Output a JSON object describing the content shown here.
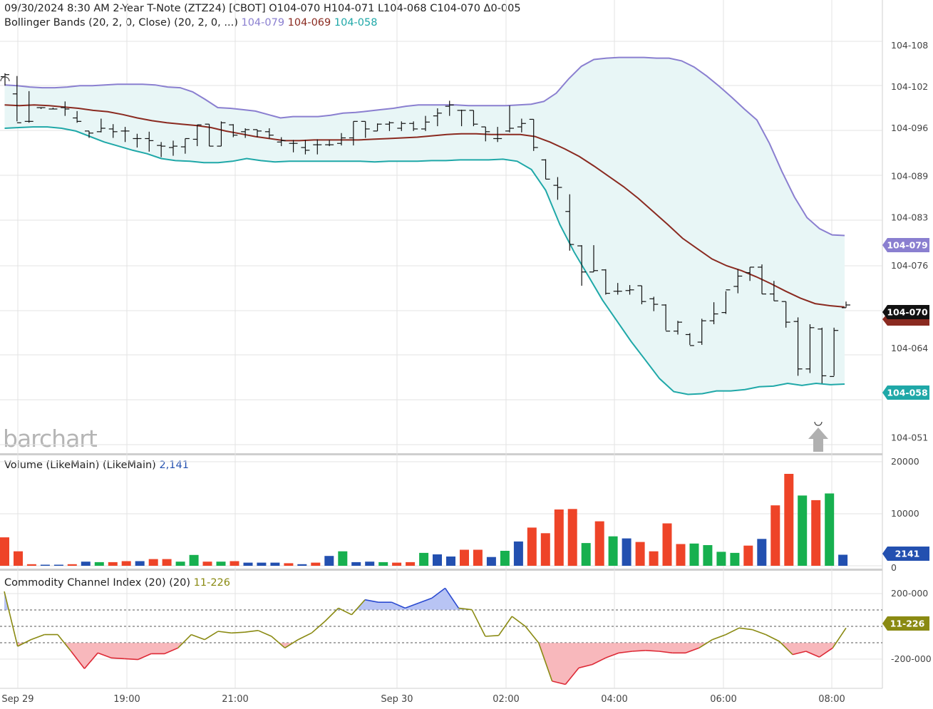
{
  "header": {
    "line1": "09/30/2024 8:30 AM  2-Year T-Note (ZTZ24) [CBOT]  O104-070  H104-071  L104-068  C104-070  Δ0-005",
    "bb_label": "Bollinger Bands (20, 2, 0, Close)  (20, 2, 0, ...)",
    "bb_upper": "104-079",
    "bb_mid": "104-069",
    "bb_lower": "104-058"
  },
  "logo": "barchart",
  "colors": {
    "upper": "#8a7fd0",
    "mid": "#8a2a20",
    "lower": "#1fa8a8",
    "band_fill": "#e8f6f6",
    "vol_up": "#17b04f",
    "vol_down": "#ee4428",
    "vol_neutral": "#2350b0",
    "cci_line": "#8a8a12",
    "cci_pos_fill": "#b8c4f4",
    "cci_neg_fill": "#f8b8bc"
  },
  "badges": {
    "upper": "104-079",
    "last": "104-070",
    "lower": "104-058",
    "volume": "2141",
    "cci": "11-226"
  },
  "volume_panel": {
    "label": "Volume (LikeMain)  (LikeMain)",
    "value": "2,141"
  },
  "cci_panel": {
    "label": "Commodity Channel Index (20)  (20)",
    "value": "11-226"
  },
  "chart_data": [
    {
      "type": "ohlc",
      "title": "2-Year T-Note (ZTZ24) [CBOT]",
      "x_ticks": [
        "Sep 29",
        "19:00",
        "21:00",
        "Sep 30",
        "02:00",
        "04:00",
        "06:00",
        "08:00"
      ],
      "y_ticks": [
        "104-108",
        "104-102",
        "104-096",
        "104-089",
        "104-083",
        "104-076",
        "104-064",
        "104-051"
      ],
      "bars": [
        {
          "o": 103.5,
          "h": 104.0,
          "l": 102.2,
          "c": 103.8
        },
        {
          "o": 101.0,
          "h": 103.6,
          "l": 97.0,
          "c": 96.8
        },
        {
          "o": 97.0,
          "h": 101.4,
          "l": 96.8,
          "c": 97.0
        },
        {
          "o": 99.0,
          "h": 99.0,
          "l": 98.8,
          "c": 99.0
        },
        {
          "o": 98.8,
          "h": 99.0,
          "l": 98.8,
          "c": 98.8
        },
        {
          "o": 99.0,
          "h": 99.9,
          "l": 97.8,
          "c": 98.8
        },
        {
          "o": 97.5,
          "h": 98.5,
          "l": 96.8,
          "c": 97.0
        },
        {
          "o": 95.6,
          "h": 95.6,
          "l": 94.6,
          "c": 95.3
        },
        {
          "o": 95.5,
          "h": 97.4,
          "l": 95.4,
          "c": 96.0
        },
        {
          "o": 95.9,
          "h": 96.6,
          "l": 94.6,
          "c": 95.5
        },
        {
          "o": 95.6,
          "h": 96.2,
          "l": 94.0,
          "c": 95.6
        },
        {
          "o": 94.5,
          "h": 95.2,
          "l": 93.2,
          "c": 94.5
        },
        {
          "o": 94.5,
          "h": 95.5,
          "l": 92.6,
          "c": 94.2
        },
        {
          "o": 93.5,
          "h": 94.0,
          "l": 91.8,
          "c": 93.4
        },
        {
          "o": 93.2,
          "h": 94.2,
          "l": 92.0,
          "c": 93.4
        },
        {
          "o": 93.3,
          "h": 94.5,
          "l": 92.3,
          "c": 94.5
        },
        {
          "o": 94.4,
          "h": 96.5,
          "l": 93.4,
          "c": 96.5
        },
        {
          "o": 96.6,
          "h": 96.6,
          "l": 93.4,
          "c": 93.4
        },
        {
          "o": 93.4,
          "h": 97.0,
          "l": 93.4,
          "c": 96.8
        },
        {
          "o": 96.5,
          "h": 96.6,
          "l": 94.7,
          "c": 95.0
        },
        {
          "o": 95.5,
          "h": 96.0,
          "l": 94.6,
          "c": 95.8
        },
        {
          "o": 95.8,
          "h": 95.8,
          "l": 94.7,
          "c": 95.6
        },
        {
          "o": 95.5,
          "h": 96.0,
          "l": 94.5,
          "c": 95.0
        },
        {
          "o": 94.0,
          "h": 94.7,
          "l": 93.4,
          "c": 94.2
        },
        {
          "o": 93.8,
          "h": 94.3,
          "l": 92.5,
          "c": 93.8
        },
        {
          "o": 93.2,
          "h": 94.3,
          "l": 92.2,
          "c": 92.8
        },
        {
          "o": 93.6,
          "h": 94.4,
          "l": 92.2,
          "c": 93.6
        },
        {
          "o": 93.6,
          "h": 94.3,
          "l": 93.4,
          "c": 93.6
        },
        {
          "o": 93.8,
          "h": 95.3,
          "l": 93.5,
          "c": 94.6
        },
        {
          "o": 94.6,
          "h": 97.0,
          "l": 93.5,
          "c": 97.0
        },
        {
          "o": 97.0,
          "h": 97.0,
          "l": 94.6,
          "c": 95.9
        },
        {
          "o": 95.6,
          "h": 96.7,
          "l": 95.6,
          "c": 96.6
        },
        {
          "o": 96.6,
          "h": 97.0,
          "l": 95.6,
          "c": 96.8
        },
        {
          "o": 96.0,
          "h": 97.0,
          "l": 95.6,
          "c": 96.7
        },
        {
          "o": 96.7,
          "h": 97.0,
          "l": 95.6,
          "c": 95.9
        },
        {
          "o": 95.9,
          "h": 97.8,
          "l": 95.6,
          "c": 96.9
        },
        {
          "o": 97.8,
          "h": 98.9,
          "l": 96.3,
          "c": 98.2
        },
        {
          "o": 99.2,
          "h": 100.0,
          "l": 97.8,
          "c": 99.4
        },
        {
          "o": 98.6,
          "h": 98.7,
          "l": 96.3,
          "c": 98.6
        },
        {
          "o": 98.6,
          "h": 98.6,
          "l": 96.3,
          "c": 96.6
        },
        {
          "o": 96.2,
          "h": 96.2,
          "l": 94.1,
          "c": 95.5
        },
        {
          "o": 94.5,
          "h": 96.2,
          "l": 94.0,
          "c": 94.5
        },
        {
          "o": 95.6,
          "h": 99.3,
          "l": 95.4,
          "c": 96.0
        },
        {
          "o": 96.2,
          "h": 97.4,
          "l": 95.4,
          "c": 96.7
        },
        {
          "o": 97.3,
          "h": 97.3,
          "l": 92.7,
          "c": 93.2
        },
        {
          "o": 91.4,
          "h": 91.5,
          "l": 88.6,
          "c": 88.6
        },
        {
          "o": 87.7,
          "h": 88.9,
          "l": 85.6,
          "c": 87.4
        },
        {
          "o": 83.9,
          "h": 86.4,
          "l": 78.2,
          "c": 79.1
        },
        {
          "o": 78.9,
          "h": 79.0,
          "l": 73.1,
          "c": 75.1
        },
        {
          "o": 75.1,
          "h": 79.0,
          "l": 75.1,
          "c": 75.3
        },
        {
          "o": 75.4,
          "h": 75.5,
          "l": 71.8,
          "c": 72.0
        },
        {
          "o": 72.3,
          "h": 73.5,
          "l": 71.8,
          "c": 72.3
        },
        {
          "o": 72.4,
          "h": 73.2,
          "l": 71.8,
          "c": 72.5
        },
        {
          "o": 73.1,
          "h": 73.1,
          "l": 70.4,
          "c": 70.8
        },
        {
          "o": 71.2,
          "h": 71.5,
          "l": 69.4,
          "c": 70.4
        },
        {
          "o": 70.3,
          "h": 70.4,
          "l": 66.6,
          "c": 66.5
        },
        {
          "o": 66.5,
          "h": 68.0,
          "l": 66.0,
          "c": 67.8
        },
        {
          "o": 66.0,
          "h": 66.2,
          "l": 64.5,
          "c": 64.4
        },
        {
          "o": 64.9,
          "h": 68.3,
          "l": 64.5,
          "c": 68.0
        },
        {
          "o": 68.0,
          "h": 70.7,
          "l": 67.5,
          "c": 69.0
        },
        {
          "o": 69.2,
          "h": 72.3,
          "l": 69.0,
          "c": 72.5
        },
        {
          "o": 73.0,
          "h": 75.5,
          "l": 72.0,
          "c": 74.5
        },
        {
          "o": 75.0,
          "h": 75.8,
          "l": 73.8,
          "c": 75.8
        },
        {
          "o": 75.8,
          "h": 76.2,
          "l": 71.9,
          "c": 71.9
        },
        {
          "o": 71.9,
          "h": 73.8,
          "l": 70.9,
          "c": 70.9
        },
        {
          "o": 70.8,
          "h": 70.8,
          "l": 67.0,
          "c": 67.8
        },
        {
          "o": 67.9,
          "h": 68.5,
          "l": 60.0,
          "c": 61.0
        },
        {
          "o": 61.0,
          "h": 67.5,
          "l": 60.4,
          "c": 67.0
        },
        {
          "o": 66.8,
          "h": 67.0,
          "l": 58.9,
          "c": 60.0
        },
        {
          "o": 59.9,
          "h": 67.0,
          "l": 60.0,
          "c": 66.6
        },
        {
          "o": 69.9,
          "h": 70.8,
          "l": 69.9,
          "c": 70.3
        }
      ],
      "bb_upper": [
        102.3,
        102.2,
        102.0,
        101.9,
        101.9,
        102.0,
        102.2,
        102.2,
        102.3,
        102.4,
        102.4,
        102.4,
        102.3,
        102.0,
        101.9,
        101.3,
        100.2,
        99.0,
        98.9,
        98.7,
        98.5,
        98.0,
        97.5,
        97.7,
        97.7,
        97.7,
        97.9,
        98.2,
        98.3,
        98.5,
        98.7,
        98.9,
        99.2,
        99.4,
        99.4,
        99.4,
        99.4,
        99.3,
        99.3,
        99.3,
        99.3,
        99.4,
        99.5,
        99.9,
        101.1,
        103.2,
        105.0,
        106.0,
        106.2,
        106.3,
        106.3,
        106.3,
        106.2,
        106.2,
        105.8,
        104.9,
        103.6,
        102.1,
        100.5,
        98.8,
        97.2,
        93.8,
        89.7,
        86.0,
        83.0,
        81.4,
        80.5,
        80.4
      ],
      "bb_mid": [
        99.4,
        99.3,
        99.4,
        99.3,
        99.1,
        98.9,
        98.6,
        98.4,
        98.0,
        97.5,
        97.1,
        96.8,
        96.6,
        96.4,
        96.1,
        95.6,
        95.2,
        94.8,
        94.5,
        94.2,
        94.2,
        94.3,
        94.3,
        94.3,
        94.3,
        94.4,
        94.5,
        94.6,
        94.7,
        94.9,
        95.1,
        95.2,
        95.2,
        95.1,
        95.1,
        95.1,
        94.8,
        94.0,
        93.0,
        91.9,
        90.5,
        89.0,
        87.5,
        85.8,
        83.9,
        82.0,
        80.0,
        78.5,
        77.0,
        76.0,
        75.3,
        74.4,
        73.4,
        72.3,
        71.3,
        70.5,
        70.2,
        70.0
      ],
      "bb_lower": [
        96.0,
        96.1,
        96.2,
        96.2,
        96.0,
        95.6,
        94.8,
        94.0,
        93.4,
        92.8,
        92.3,
        91.6,
        91.3,
        91.2,
        91.0,
        91.0,
        91.2,
        91.6,
        91.3,
        91.1,
        91.2,
        91.2,
        91.2,
        91.2,
        91.2,
        91.2,
        91.1,
        91.2,
        91.2,
        91.2,
        91.3,
        91.3,
        91.4,
        91.4,
        91.4,
        91.5,
        91.2,
        90.0,
        87.0,
        82.0,
        78.0,
        74.5,
        71.0,
        68.0,
        65.0,
        62.3,
        59.6,
        57.7,
        57.3,
        57.4,
        57.8,
        57.8,
        58.0,
        58.4,
        58.5,
        58.9,
        58.6,
        58.9,
        58.7,
        58.8
      ]
    },
    {
      "type": "bar",
      "title": "Volume (LikeMain)",
      "y_ticks": [
        "20000",
        "10000",
        "0"
      ],
      "values": [
        {
          "v": 5500,
          "d": "down"
        },
        {
          "v": 2800,
          "d": "down"
        },
        {
          "v": 300,
          "d": "down"
        },
        {
          "v": 200,
          "d": "neutral"
        },
        {
          "v": 200,
          "d": "neutral"
        },
        {
          "v": 300,
          "d": "down"
        },
        {
          "v": 800,
          "d": "neutral"
        },
        {
          "v": 700,
          "d": "up"
        },
        {
          "v": 700,
          "d": "down"
        },
        {
          "v": 900,
          "d": "down"
        },
        {
          "v": 900,
          "d": "neutral"
        },
        {
          "v": 1300,
          "d": "down"
        },
        {
          "v": 1300,
          "d": "down"
        },
        {
          "v": 800,
          "d": "up"
        },
        {
          "v": 2100,
          "d": "up"
        },
        {
          "v": 800,
          "d": "down"
        },
        {
          "v": 800,
          "d": "up"
        },
        {
          "v": 900,
          "d": "down"
        },
        {
          "v": 600,
          "d": "neutral"
        },
        {
          "v": 600,
          "d": "neutral"
        },
        {
          "v": 600,
          "d": "neutral"
        },
        {
          "v": 500,
          "d": "down"
        },
        {
          "v": 300,
          "d": "neutral"
        },
        {
          "v": 600,
          "d": "down"
        },
        {
          "v": 1900,
          "d": "neutral"
        },
        {
          "v": 2800,
          "d": "up"
        },
        {
          "v": 700,
          "d": "neutral"
        },
        {
          "v": 800,
          "d": "neutral"
        },
        {
          "v": 700,
          "d": "up"
        },
        {
          "v": 600,
          "d": "down"
        },
        {
          "v": 700,
          "d": "down"
        },
        {
          "v": 2500,
          "d": "up"
        },
        {
          "v": 2200,
          "d": "neutral"
        },
        {
          "v": 1800,
          "d": "neutral"
        },
        {
          "v": 3100,
          "d": "down"
        },
        {
          "v": 3100,
          "d": "down"
        },
        {
          "v": 1700,
          "d": "neutral"
        },
        {
          "v": 2900,
          "d": "up"
        },
        {
          "v": 4700,
          "d": "neutral"
        },
        {
          "v": 7400,
          "d": "down"
        },
        {
          "v": 6300,
          "d": "down"
        },
        {
          "v": 10900,
          "d": "down"
        },
        {
          "v": 11000,
          "d": "down"
        },
        {
          "v": 4400,
          "d": "up"
        },
        {
          "v": 8600,
          "d": "down"
        },
        {
          "v": 5700,
          "d": "up"
        },
        {
          "v": 5300,
          "d": "neutral"
        },
        {
          "v": 4600,
          "d": "down"
        },
        {
          "v": 2800,
          "d": "down"
        },
        {
          "v": 8200,
          "d": "down"
        },
        {
          "v": 4200,
          "d": "down"
        },
        {
          "v": 4300,
          "d": "up"
        },
        {
          "v": 4000,
          "d": "up"
        },
        {
          "v": 2700,
          "d": "up"
        },
        {
          "v": 2500,
          "d": "up"
        },
        {
          "v": 3900,
          "d": "down"
        },
        {
          "v": 5200,
          "d": "neutral"
        },
        {
          "v": 11700,
          "d": "down"
        },
        {
          "v": 17800,
          "d": "down"
        },
        {
          "v": 13600,
          "d": "up"
        },
        {
          "v": 12700,
          "d": "down"
        },
        {
          "v": 14000,
          "d": "up"
        },
        {
          "v": 2141,
          "d": "neutral"
        }
      ]
    },
    {
      "type": "line",
      "title": "Commodity Channel Index (20)",
      "y_ticks": [
        "200-000",
        "-200-000"
      ],
      "values": [
        210,
        -120,
        -80,
        -50,
        -50,
        -150,
        -255,
        -160,
        -190,
        -195,
        -200,
        -165,
        -165,
        -130,
        -50,
        -80,
        -30,
        -40,
        -35,
        -25,
        -60,
        -130,
        -80,
        -40,
        30,
        110,
        70,
        160,
        145,
        145,
        110,
        140,
        170,
        230,
        110,
        100,
        -60,
        -55,
        60,
        0,
        -100,
        -330,
        -350,
        -250,
        -230,
        -190,
        -160,
        -150,
        -145,
        -150,
        -160,
        -160,
        -130,
        -80,
        -50,
        -10,
        -20,
        -50,
        -90,
        -170,
        -150,
        -185,
        -130,
        -10
      ]
    }
  ]
}
